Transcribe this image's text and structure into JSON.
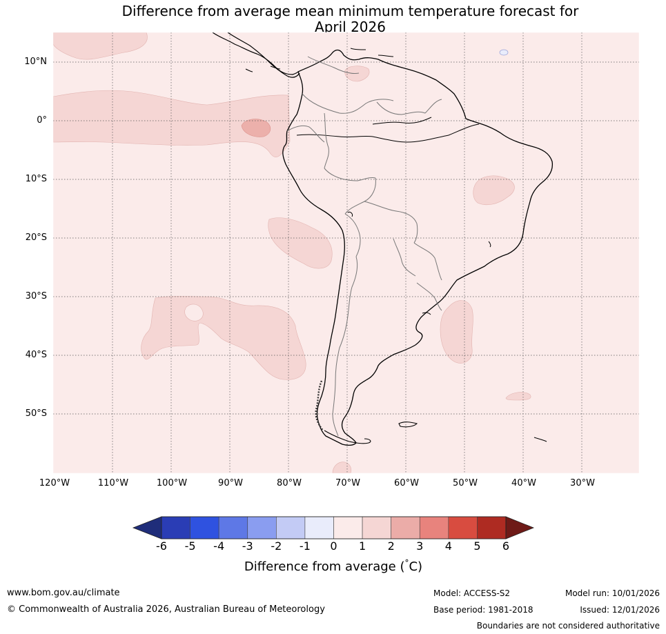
{
  "title": {
    "line1": "Difference from average mean minimum temperature forecast for",
    "line2": "April 2026"
  },
  "map": {
    "region": "South America and surrounding oceans",
    "lat_labels": [
      "10°N",
      "0°",
      "10°S",
      "20°S",
      "30°S",
      "40°S",
      "50°S"
    ],
    "lon_labels": [
      "120°W",
      "110°W",
      "100°W",
      "90°W",
      "80°W",
      "70°W",
      "60°W",
      "50°W",
      "40°W",
      "30°W"
    ],
    "background_category": "0 to 1",
    "anomaly_regions": [
      {
        "name": "equatorial-pacific-band",
        "category": "1 to 2"
      },
      {
        "name": "galapagos-warm-core",
        "category": "2 to 3"
      },
      {
        "name": "north-east-pacific-patch",
        "category": "1 to 2"
      },
      {
        "name": "south-east-pacific-patch",
        "category": "1 to 2"
      },
      {
        "name": "south-pacific-patch",
        "category": "1 to 2"
      },
      {
        "name": "eastern-brazil-patch",
        "category": "1 to 2"
      },
      {
        "name": "uruguay-coast-patch",
        "category": "1 to 2"
      },
      {
        "name": "south-atlantic-patch",
        "category": "1 to 2"
      },
      {
        "name": "caribbean-patch",
        "category": "1 to 2"
      },
      {
        "name": "drake-passage-patch",
        "category": "1 to 2"
      },
      {
        "name": "mid-atlantic-cool-dot",
        "category": "-1 to 0"
      }
    ]
  },
  "colorbar": {
    "ticks": [
      "-6",
      "-5",
      "-4",
      "-3",
      "-2",
      "-1",
      "0",
      "1",
      "2",
      "3",
      "4",
      "5",
      "6"
    ],
    "colors": [
      "#1f2d7a",
      "#2a3db5",
      "#2f52e0",
      "#5e78e6",
      "#8a9df0",
      "#c3cbf5",
      "#e9ecfb",
      "#fbebea",
      "#f5d6d4",
      "#ebaca8",
      "#e8837d",
      "#d84c40",
      "#ae2b22",
      "#6e1a17"
    ],
    "label": "Difference from average (°C)",
    "label_prefix": "Difference from average (",
    "label_degree": "°",
    "label_suffix": "C)"
  },
  "footer": {
    "url": "www.bom.gov.au/climate",
    "copyright": "© Commonwealth of Australia 2026, Australian Bureau of Meteorology",
    "model": "Model: ACCESS-S2",
    "base_period": "Base period: 1981-2018",
    "model_run": "Model run: 10/01/2026",
    "issued": "Issued: 12/01/2026",
    "disclaimer": "Boundaries are not considered authoritative"
  }
}
